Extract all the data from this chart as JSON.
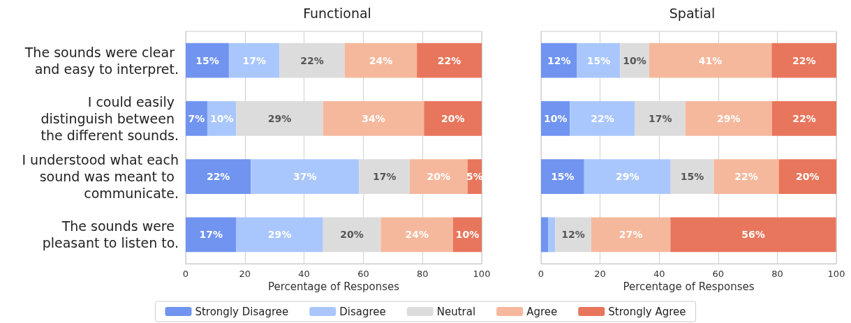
{
  "chart_data": [
    {
      "type": "bar",
      "orientation": "horizontal",
      "stacked": true,
      "title": "Functional",
      "xlabel": "Percentage of Responses",
      "categories": [
        "The sounds were clear and easy to interpret.",
        "I could easily distinguish between the different sounds.",
        "I understood what each sound was meant to communicate.",
        "The sounds were pleasant to listen to."
      ],
      "xlim": [
        0,
        100
      ],
      "xticks": [
        0,
        20,
        40,
        60,
        80,
        100
      ],
      "grid": "x",
      "legend": "bottom",
      "series": [
        {
          "name": "Strongly Disagree",
          "color": "#7094f0",
          "values": [
            14.6,
            7.3,
            22.0,
            17.1
          ],
          "value_labels": [
            "15%",
            "7%",
            "22%",
            "17%"
          ]
        },
        {
          "name": "Disagree",
          "color": "#aac7fd",
          "values": [
            17.1,
            9.8,
            36.6,
            29.3
          ],
          "value_labels": [
            "17%",
            "10%",
            "37%",
            "29%"
          ]
        },
        {
          "name": "Neutral",
          "color": "#dddcdc",
          "values": [
            22.0,
            29.3,
            17.1,
            19.5
          ],
          "value_labels": [
            "22%",
            "29%",
            "17%",
            "20%"
          ]
        },
        {
          "name": "Agree",
          "color": "#f6b89c",
          "values": [
            24.4,
            34.1,
            19.5,
            24.4
          ],
          "value_labels": [
            "24%",
            "34%",
            "20%",
            "24%"
          ]
        },
        {
          "name": "Strongly Agree",
          "color": "#e8765c",
          "values": [
            22.0,
            19.5,
            4.9,
            9.8
          ],
          "value_labels": [
            "22%",
            "20%",
            "5%",
            "10%"
          ]
        }
      ]
    },
    {
      "type": "bar",
      "orientation": "horizontal",
      "stacked": true,
      "title": "Spatial",
      "xlabel": "Percentage of Responses",
      "categories": [
        "The sounds were clear and easy to interpret.",
        "I could easily distinguish between the different sounds.",
        "I understood what each sound was meant to communicate.",
        "The sounds were pleasant to listen to."
      ],
      "xlim": [
        0,
        100
      ],
      "xticks": [
        0,
        20,
        40,
        60,
        80,
        100
      ],
      "grid": "x",
      "tick_labels": "x",
      "series": [
        {
          "color": "#7094f0",
          "values": [
            12.2,
            9.8,
            14.6,
            2.4
          ],
          "value_labels": [
            "12%",
            "10%",
            "15%",
            null
          ]
        },
        {
          "color": "#aac7fd",
          "values": [
            14.6,
            22.0,
            29.3,
            2.4
          ],
          "value_labels": [
            "15%",
            "22%",
            "29%",
            null
          ]
        },
        {
          "color": "#dddcdc",
          "values": [
            9.8,
            17.1,
            14.6,
            12.2
          ],
          "value_labels": [
            "10%",
            "17%",
            "15%",
            "12%"
          ]
        },
        {
          "color": "#f6b89c",
          "values": [
            41.5,
            29.3,
            22.0,
            26.8
          ],
          "value_labels": [
            "41%",
            "29%",
            "22%",
            "27%"
          ]
        },
        {
          "color": "#e8765c",
          "values": [
            22.0,
            22.0,
            19.5,
            56.1
          ],
          "value_labels": [
            "22%",
            "22%",
            "20%",
            "56%"
          ]
        }
      ]
    }
  ]
}
